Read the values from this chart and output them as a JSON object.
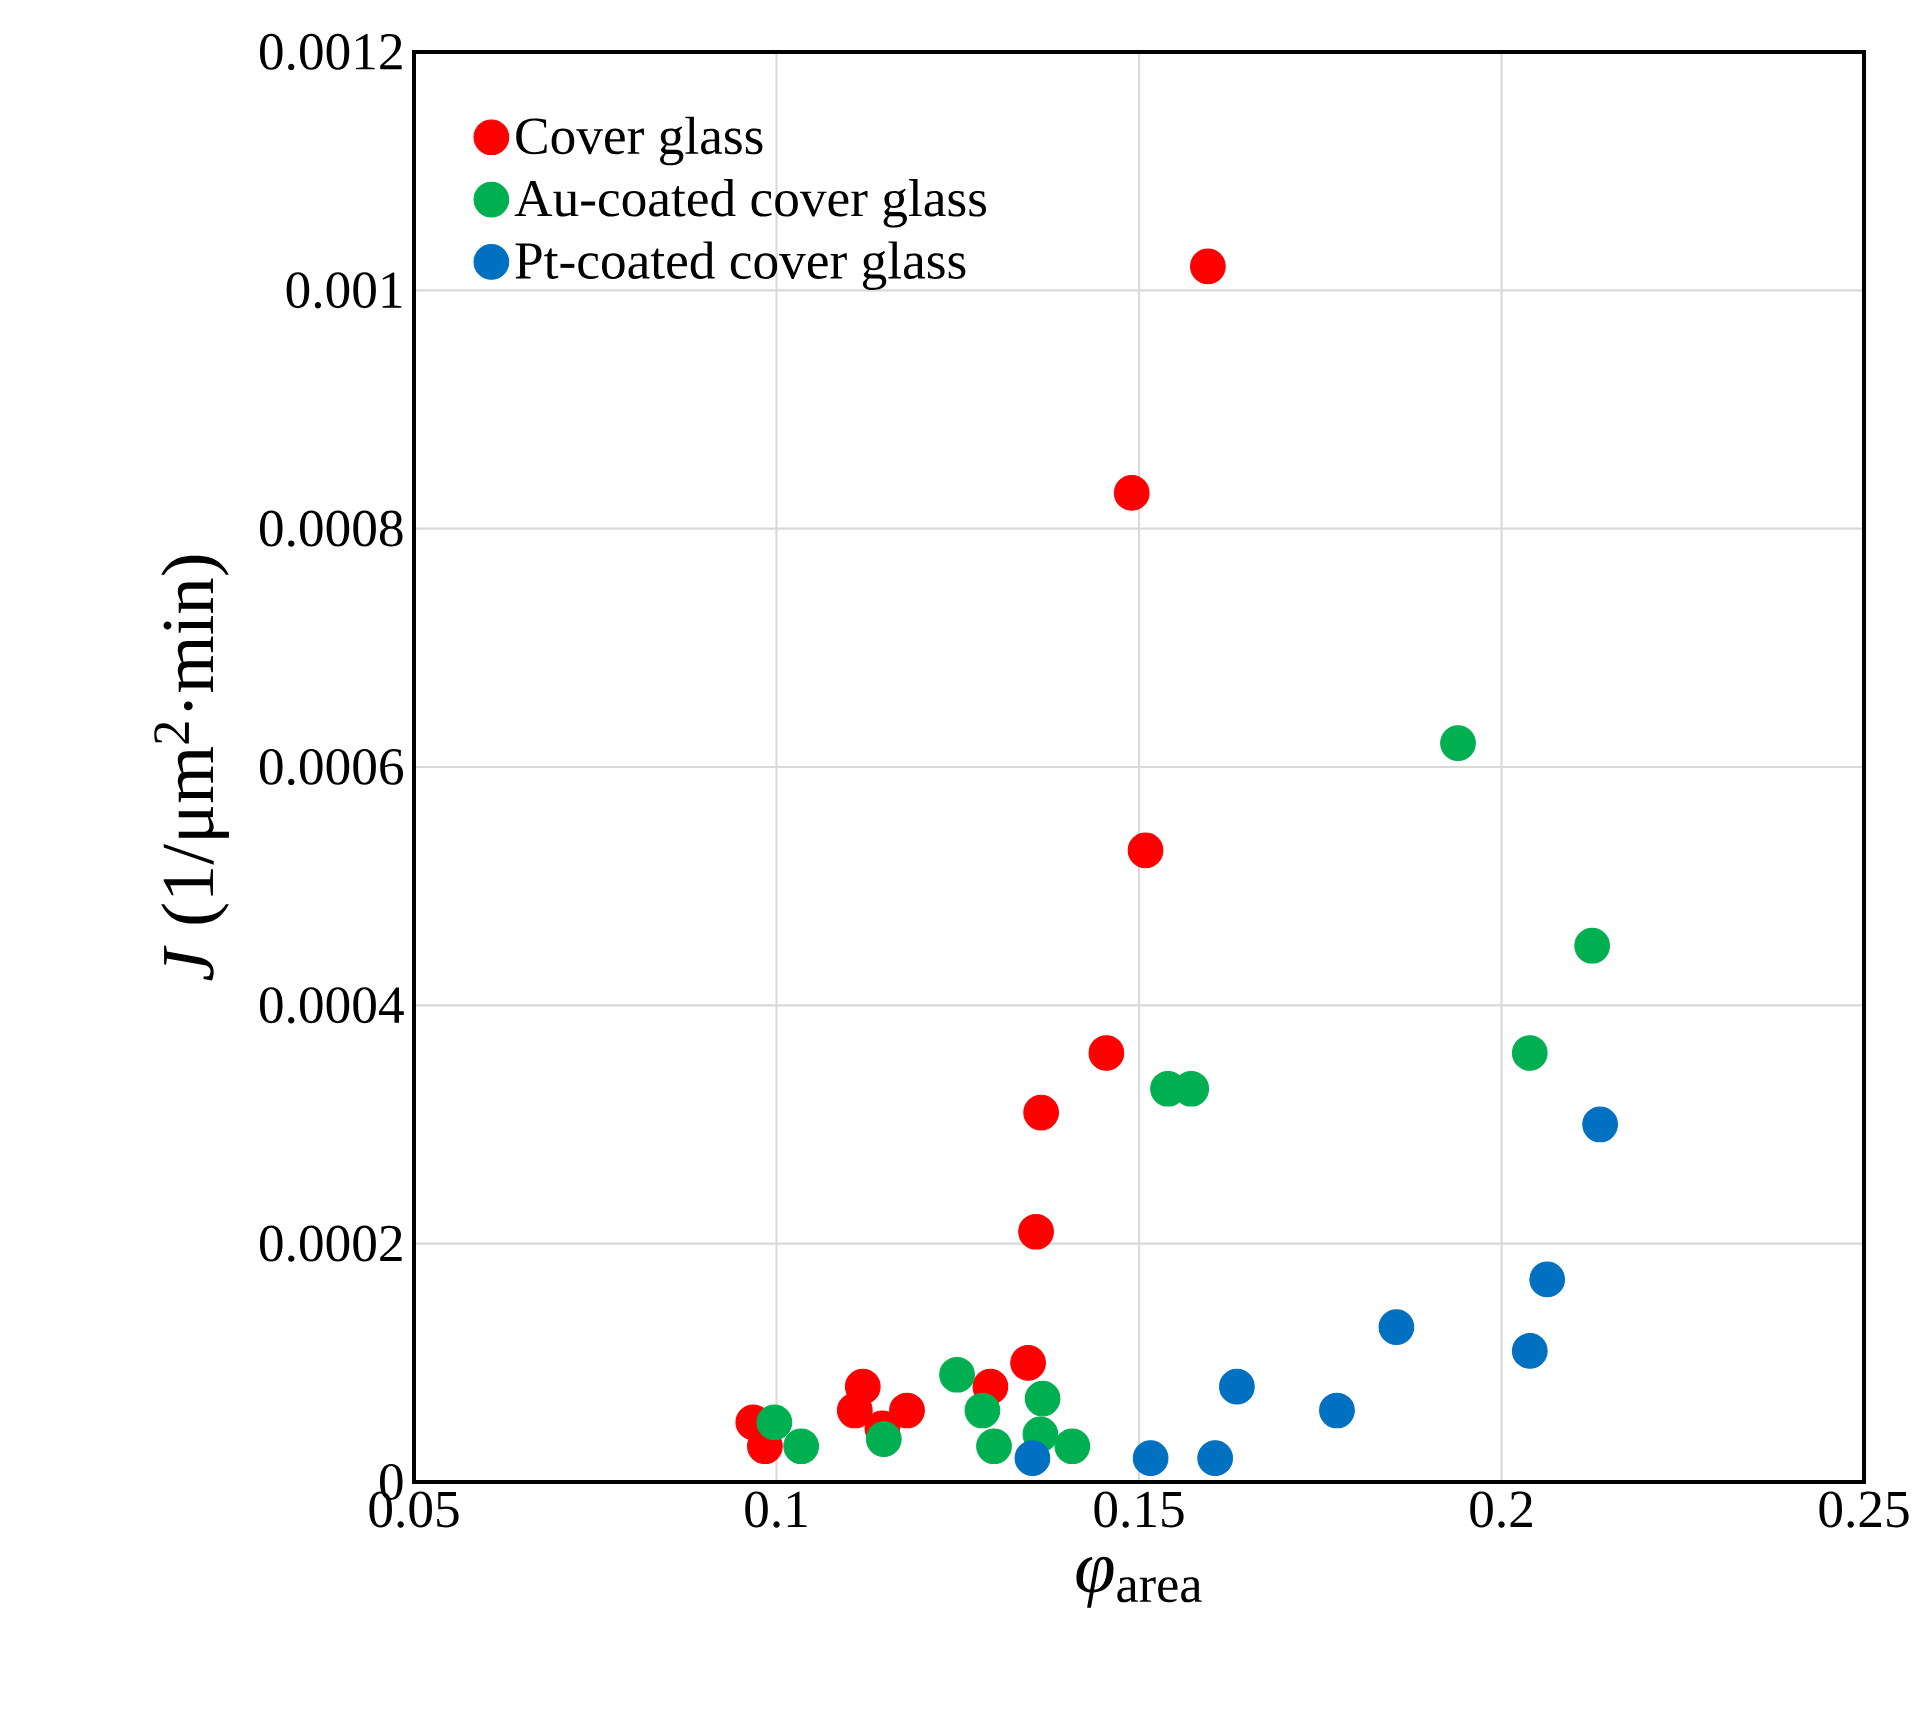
{
  "chart_data": {
    "type": "scatter",
    "xlabel": "*φ*$_{area}$",
    "ylabel": "*J* (1/μm$^{2}$·min)",
    "xlim": [
      0.05,
      0.25
    ],
    "xticks": [
      0.05,
      0.1,
      0.15,
      0.2,
      0.25
    ],
    "ylim": [
      0,
      0.0012
    ],
    "yticks": [
      0,
      0.0002,
      0.0004,
      0.0006,
      0.0008,
      0.001,
      0.0012
    ],
    "grid": true,
    "legend": "top left",
    "marker": "circle",
    "series": [
      {
        "name": "Cover glass",
        "color": "#ff0000",
        "x": [
          0.0968,
          0.0984,
          0.1119,
          0.1108,
          0.1146,
          0.118,
          0.1295,
          0.1347,
          0.1358,
          0.1365,
          0.1455,
          0.1509,
          0.149,
          0.1595
        ],
        "values": [
          5e-05,
          3e-05,
          8e-05,
          6e-05,
          4.5e-05,
          6e-05,
          8e-05,
          0.0001,
          0.00021,
          0.00031,
          0.00036,
          0.00053,
          0.00083,
          0.00102
        ]
      },
      {
        "name": "Au-coated cover glass",
        "color": "#00b050",
        "x": [
          0.0997,
          0.1034,
          0.1148,
          0.1249,
          0.1284,
          0.13,
          0.1367,
          0.1364,
          0.1408,
          0.154,
          0.1572,
          0.194,
          0.2125,
          0.2039
        ],
        "values": [
          5e-05,
          3e-05,
          3.6e-05,
          9e-05,
          6e-05,
          3e-05,
          7e-05,
          4e-05,
          3e-05,
          0.00033,
          0.00033,
          0.00062,
          0.00045,
          0.00036
        ]
      },
      {
        "name": "Pt-coated cover glass",
        "color": "#0070c0",
        "x": [
          0.1353,
          0.1516,
          0.1605,
          0.1635,
          0.1773,
          0.1855,
          0.2039,
          0.2063,
          0.2136
        ],
        "values": [
          2e-05,
          2e-05,
          2e-05,
          8e-05,
          6e-05,
          0.00013,
          0.00011,
          0.00017,
          0.0003
        ]
      }
    ]
  }
}
